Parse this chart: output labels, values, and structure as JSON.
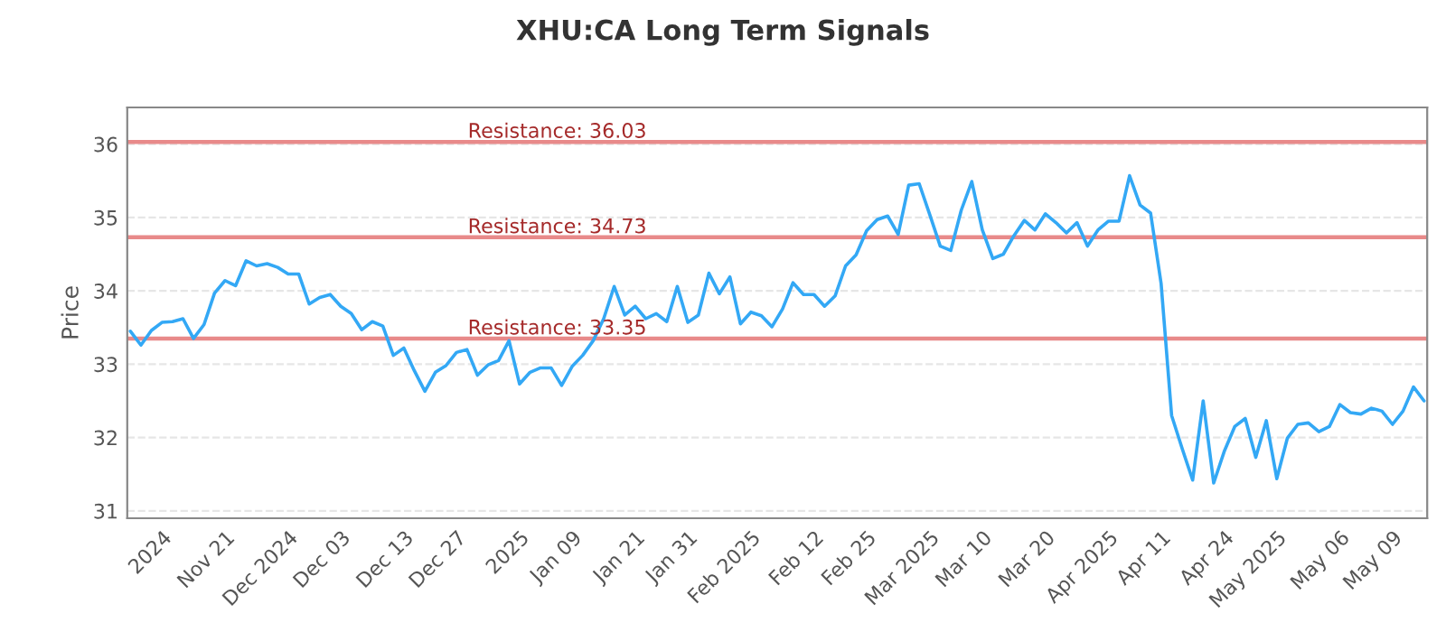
{
  "chart_data": {
    "type": "line",
    "title": "XHU:CA Long Term Signals",
    "ylabel": "Price",
    "categories": [
      null,
      null,
      null,
      "2024",
      null,
      null,
      null,
      null,
      null,
      "Nov 21",
      null,
      null,
      null,
      null,
      null,
      "Dec 2024",
      null,
      null,
      null,
      null,
      "Dec 03",
      null,
      null,
      null,
      null,
      null,
      "Dec 13",
      null,
      null,
      null,
      null,
      "Dec 27",
      null,
      null,
      null,
      null,
      null,
      "2025",
      null,
      null,
      null,
      null,
      "Jan 09",
      null,
      null,
      null,
      null,
      null,
      "Jan 21",
      null,
      null,
      null,
      null,
      "Jan 31",
      null,
      null,
      null,
      null,
      null,
      "Feb 2025",
      null,
      null,
      null,
      null,
      null,
      "Feb 12",
      null,
      null,
      null,
      null,
      "Feb 25",
      null,
      null,
      null,
      null,
      null,
      "Mar 2025",
      null,
      null,
      null,
      null,
      "Mar 10",
      null,
      null,
      null,
      null,
      null,
      "Mar 20",
      null,
      null,
      null,
      null,
      null,
      "Apr 2025",
      null,
      null,
      null,
      null,
      "Apr 11",
      null,
      null,
      null,
      null,
      null,
      "Apr 24",
      null,
      null,
      null,
      null,
      "May 2025",
      null,
      null,
      null,
      null,
      null,
      "May 06",
      null,
      null,
      null,
      null,
      "May 09",
      null,
      null,
      null
    ],
    "series": [
      {
        "color": "#33a8f5",
        "values": [
          33.45,
          33.26,
          33.46,
          33.57,
          33.58,
          33.62,
          33.35,
          33.54,
          33.97,
          34.14,
          34.07,
          34.41,
          34.34,
          34.37,
          34.32,
          34.23,
          34.23,
          33.82,
          33.91,
          33.95,
          33.79,
          33.69,
          33.47,
          33.58,
          33.52,
          33.12,
          33.22,
          32.91,
          32.63,
          32.89,
          32.98,
          33.16,
          33.2,
          32.85,
          32.99,
          33.05,
          33.32,
          32.73,
          32.89,
          32.95,
          32.95,
          32.71,
          32.97,
          33.12,
          33.32,
          33.62,
          34.06,
          33.67,
          33.79,
          33.62,
          33.69,
          33.58,
          34.06,
          33.57,
          33.67,
          34.24,
          33.96,
          34.19,
          33.55,
          33.71,
          33.66,
          33.51,
          33.75,
          34.11,
          33.95,
          33.95,
          33.79,
          33.93,
          34.34,
          34.49,
          34.82,
          34.97,
          35.02,
          34.77,
          35.44,
          35.46,
          35.04,
          34.61,
          34.55,
          35.1,
          35.49,
          34.83,
          34.44,
          34.5,
          34.75,
          34.96,
          34.83,
          35.05,
          34.93,
          34.79,
          34.93,
          34.61,
          34.83,
          34.95,
          34.95,
          35.57,
          35.17,
          35.06,
          34.1,
          32.3,
          31.85,
          31.42,
          32.5,
          31.38,
          31.81,
          32.15,
          32.26,
          31.73,
          32.23,
          31.44,
          31.99,
          32.18,
          32.2,
          32.08,
          32.15,
          32.45,
          32.34,
          32.32,
          32.4,
          32.36,
          32.18,
          32.36,
          32.69,
          32.5
        ]
      }
    ],
    "ylim": [
      30.9,
      36.5
    ],
    "yticks": [
      31,
      32,
      33,
      34,
      35,
      36
    ],
    "grid": "y",
    "marker": "none",
    "line_style": "solid",
    "ref_lines": [
      {
        "axis": "y",
        "value": 36.03,
        "label": "Resistance: 36.03",
        "color": "#e88a8a"
      },
      {
        "axis": "y",
        "value": 34.73,
        "label": "Resistance: 34.73",
        "color": "#e88a8a"
      },
      {
        "axis": "y",
        "value": 33.35,
        "label": "Resistance: 33.35",
        "color": "#e88a8a"
      }
    ]
  }
}
